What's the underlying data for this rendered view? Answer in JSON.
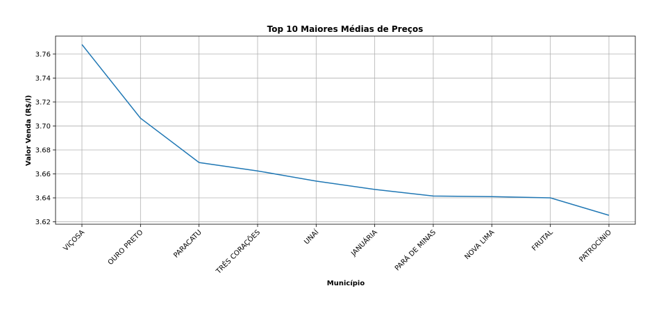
{
  "chart_data": {
    "type": "line",
    "title": "Top 10 Maiores Médias de Preços",
    "xlabel": "Município",
    "ylabel": "Valor Venda (R$/l)",
    "categories": [
      "VIÇOSA",
      "OURO PRETO",
      "PARACATU",
      "TRÊS CORAÇÕES",
      "UNAÍ",
      "JANUÁRIA",
      "PARÁ DE MINAS",
      "NOVA LIMA",
      "FRUTAL",
      "PATROCÍNIO"
    ],
    "values": [
      3.768,
      3.7065,
      3.6695,
      3.6625,
      3.654,
      3.647,
      3.6415,
      3.641,
      3.64,
      3.6255
    ],
    "ylim": [
      3.618,
      3.775
    ],
    "yticks": [
      3.62,
      3.64,
      3.66,
      3.68,
      3.7,
      3.72,
      3.74,
      3.76
    ],
    "ytick_labels": [
      "3.62",
      "3.64",
      "3.66",
      "3.68",
      "3.70",
      "3.72",
      "3.74",
      "3.76"
    ],
    "grid": true,
    "line_color": "#1f77b4"
  }
}
